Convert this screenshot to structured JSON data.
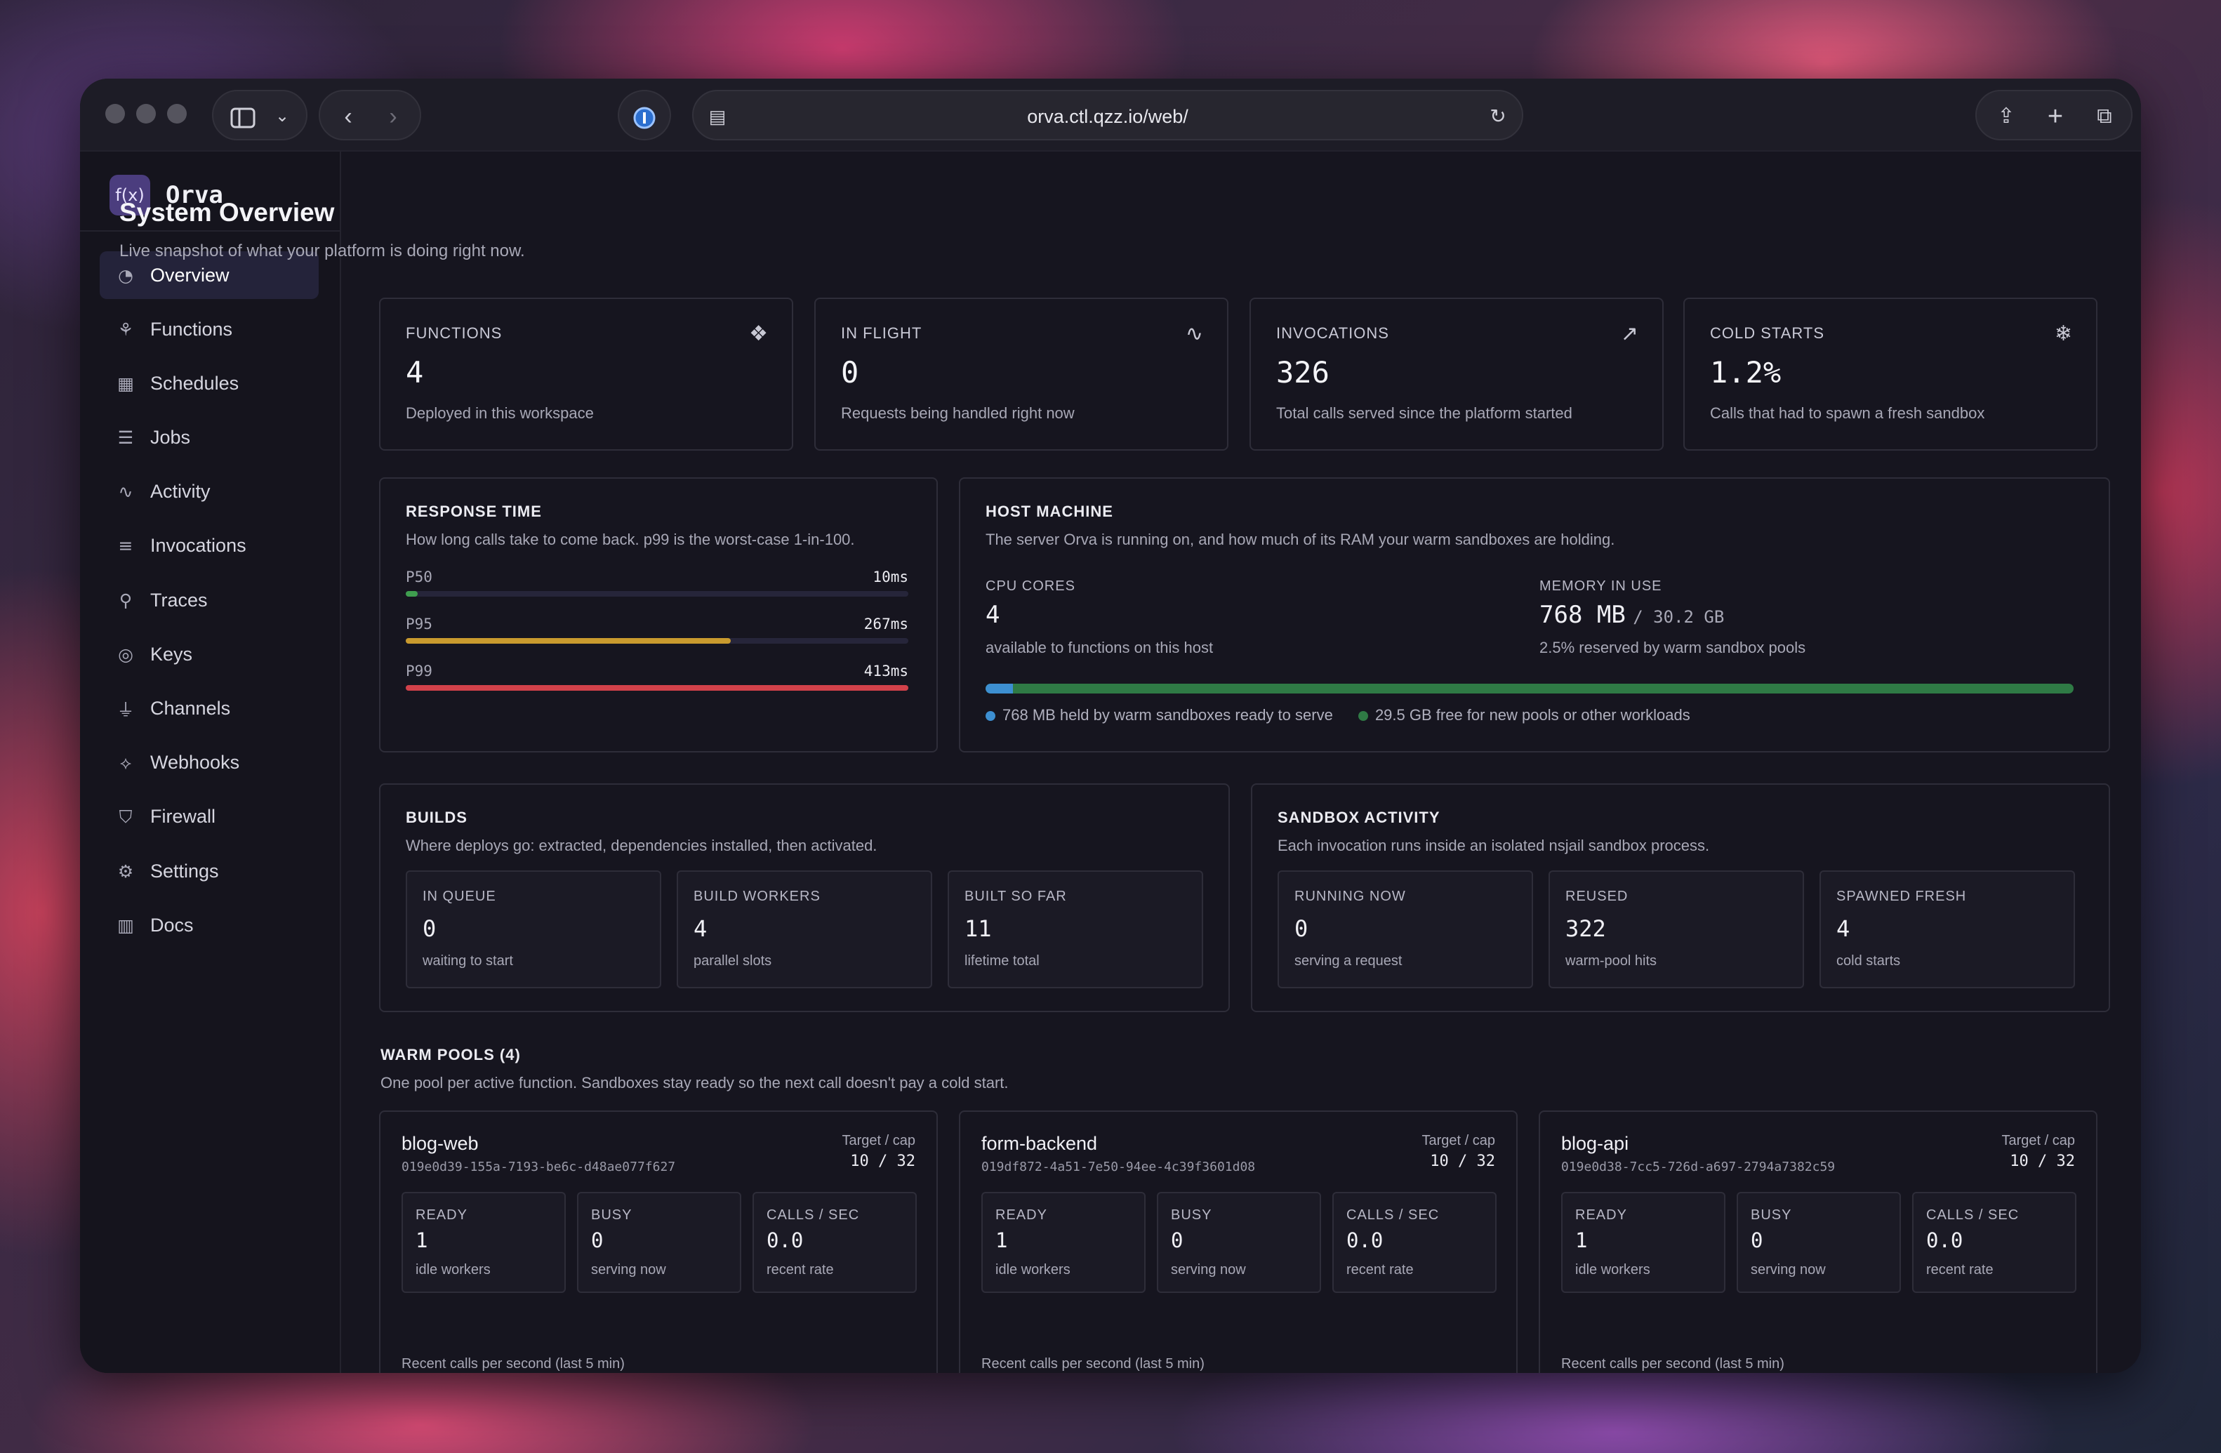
{
  "browser": {
    "url": "orva.ctl.qzz.io/web/"
  },
  "app": {
    "name": "Orva",
    "logo": "f(x)"
  },
  "nav": [
    {
      "label": "Overview",
      "icon": "gauge-icon"
    },
    {
      "label": "Functions",
      "icon": "functions-icon"
    },
    {
      "label": "Schedules",
      "icon": "calendar-clock-icon"
    },
    {
      "label": "Jobs",
      "icon": "list-checks-icon"
    },
    {
      "label": "Activity",
      "icon": "activity-icon"
    },
    {
      "label": "Invocations",
      "icon": "list-icon"
    },
    {
      "label": "Traces",
      "icon": "network-icon"
    },
    {
      "label": "Keys",
      "icon": "fingerprint-icon"
    },
    {
      "label": "Channels",
      "icon": "plug-icon"
    },
    {
      "label": "Webhooks",
      "icon": "webhook-icon"
    },
    {
      "label": "Firewall",
      "icon": "shield-icon"
    },
    {
      "label": "Settings",
      "icon": "gear-icon"
    },
    {
      "label": "Docs",
      "icon": "library-icon"
    }
  ],
  "page": {
    "title": "System Overview",
    "subtitle": "Live snapshot of what your platform is doing right now."
  },
  "stats": [
    {
      "label": "FUNCTIONS",
      "value": "4",
      "desc": "Deployed in this workspace",
      "icon": "boxes-icon"
    },
    {
      "label": "IN FLIGHT",
      "value": "0",
      "desc": "Requests being handled right now",
      "icon": "activity-icon"
    },
    {
      "label": "INVOCATIONS",
      "value": "326",
      "desc": "Total calls served since the platform started",
      "icon": "trending-up-icon"
    },
    {
      "label": "COLD STARTS",
      "value": "1.2%",
      "desc": "Calls that had to spawn a fresh sandbox",
      "icon": "snowflake-icon"
    }
  ],
  "response_time": {
    "title": "RESPONSE TIME",
    "subtitle": "How long calls take to come back. p99 is the worst-case 1-in-100.",
    "rows": [
      {
        "label": "P50",
        "value": "10ms",
        "fraction": 0.024,
        "color": "#3f9e4f"
      },
      {
        "label": "P95",
        "value": "267ms",
        "fraction": 0.646,
        "color": "#c99a2e"
      },
      {
        "label": "P99",
        "value": "413ms",
        "fraction": 1.0,
        "color": "#d2414a"
      }
    ]
  },
  "host": {
    "title": "HOST MACHINE",
    "subtitle": "The server Orva is running on, and how much of its RAM your warm sandboxes are holding.",
    "cpu_label": "CPU CORES",
    "cpu_value": "4",
    "cpu_desc": "available to functions on this host",
    "mem_label": "MEMORY IN USE",
    "mem_value": "768 MB",
    "mem_total": "/ 30.2 GB",
    "mem_desc": "2.5% reserved by warm sandbox pools",
    "used_fraction": 0.025,
    "used_color": "#3d8fd1",
    "free_color": "#2f7a45",
    "legend_used": "768 MB held by warm sandboxes ready to serve",
    "legend_free": "29.5 GB free for new pools or other workloads"
  },
  "builds": {
    "title": "BUILDS",
    "subtitle": "Where deploys go: extracted, dependencies installed, then activated.",
    "items": [
      {
        "label": "IN QUEUE",
        "value": "0",
        "desc": "waiting to start"
      },
      {
        "label": "BUILD WORKERS",
        "value": "4",
        "desc": "parallel slots"
      },
      {
        "label": "BUILT SO FAR",
        "value": "11",
        "desc": "lifetime total"
      }
    ]
  },
  "sandbox": {
    "title": "SANDBOX ACTIVITY",
    "subtitle": "Each invocation runs inside an isolated nsjail sandbox process.",
    "items": [
      {
        "label": "RUNNING NOW",
        "value": "0",
        "desc": "serving a request"
      },
      {
        "label": "REUSED",
        "value": "322",
        "desc": "warm-pool hits"
      },
      {
        "label": "SPAWNED FRESH",
        "value": "4",
        "desc": "cold starts"
      }
    ]
  },
  "warm_pools": {
    "title": "WARM POOLS (4)",
    "subtitle": "One pool per active function. Sandboxes stay ready so the next call doesn't pay a cold start.",
    "target_label": "Target / cap",
    "footer": "Recent calls per second (last 5 min)",
    "pools": [
      {
        "name": "blog-web",
        "id": "019e0d39-155a-7193-be6c-d48ae077f627",
        "target": "10 / 32",
        "metrics": [
          {
            "label": "READY",
            "value": "1",
            "desc": "idle workers"
          },
          {
            "label": "BUSY",
            "value": "0",
            "desc": "serving now"
          },
          {
            "label": "CALLS / SEC",
            "value": "0.0",
            "desc": "recent rate"
          }
        ]
      },
      {
        "name": "form-backend",
        "id": "019df872-4a51-7e50-94ee-4c39f3601d08",
        "target": "10 / 32",
        "metrics": [
          {
            "label": "READY",
            "value": "1",
            "desc": "idle workers"
          },
          {
            "label": "BUSY",
            "value": "0",
            "desc": "serving now"
          },
          {
            "label": "CALLS / SEC",
            "value": "0.0",
            "desc": "recent rate"
          }
        ]
      },
      {
        "name": "blog-api",
        "id": "019e0d38-7cc5-726d-a697-2794a7382c59",
        "target": "10 / 32",
        "metrics": [
          {
            "label": "READY",
            "value": "1",
            "desc": "idle workers"
          },
          {
            "label": "BUSY",
            "value": "0",
            "desc": "serving now"
          },
          {
            "label": "CALLS / SEC",
            "value": "0.0",
            "desc": "recent rate"
          }
        ]
      }
    ]
  }
}
